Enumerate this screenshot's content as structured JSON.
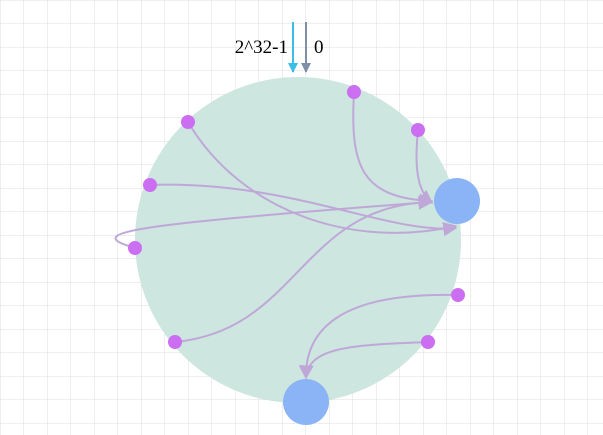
{
  "labels": {
    "max_hash": "2^32-1",
    "zero": "0"
  },
  "colors": {
    "background": "#ffffff",
    "grid": "#dcdcdc",
    "ring_fill": "#cde6df",
    "server_node": "#8ab4f5",
    "key_node": "#cc6ef2",
    "edge": "#bfa8d8",
    "arrow_max": "#3bbfe8",
    "arrow_zero": "#7f8fa6"
  },
  "diagram": {
    "type": "consistent-hash-ring",
    "server_nodes": 2,
    "key_nodes": 8
  }
}
